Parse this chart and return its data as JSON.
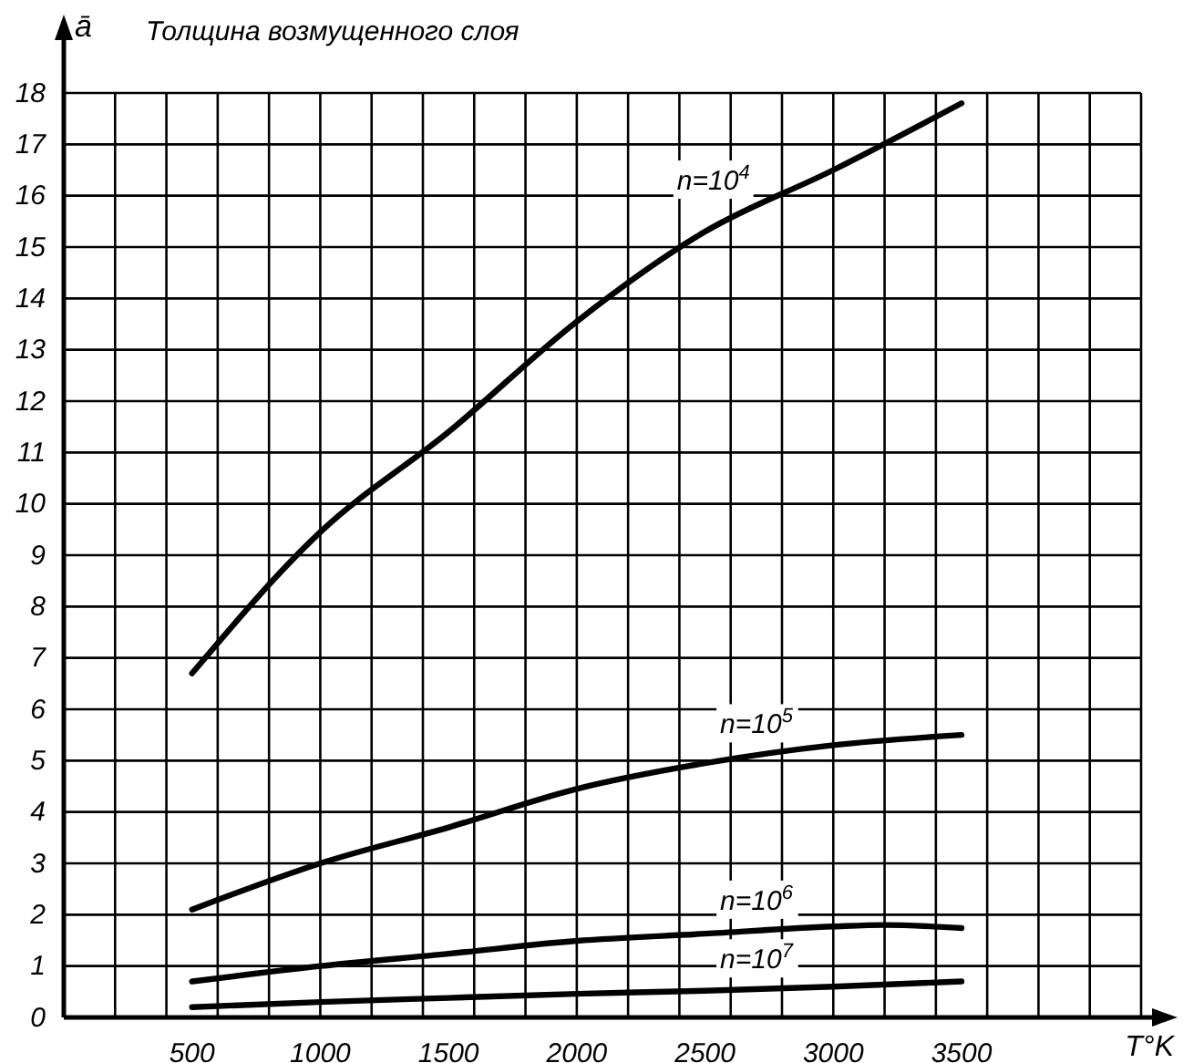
{
  "chart_data": {
    "type": "line",
    "title": "Толщина возмущенного слоя",
    "xlabel": "T°K",
    "ylabel": "ā",
    "xlim": [
      0,
      4200
    ],
    "ylim": [
      0,
      18
    ],
    "xticks": [
      {
        "value": 0,
        "label": null
      },
      {
        "value": 200,
        "label": null
      },
      {
        "value": 400,
        "label": null
      },
      500,
      {
        "value": 600,
        "label": null
      },
      {
        "value": 800,
        "label": null
      },
      1000,
      {
        "value": 1200,
        "label": null
      },
      {
        "value": 1400,
        "label": null
      },
      1500,
      {
        "value": 1600,
        "label": null
      },
      {
        "value": 1800,
        "label": null
      },
      2000,
      {
        "value": 2200,
        "label": null
      },
      {
        "value": 2400,
        "label": null
      },
      2500,
      {
        "value": 2600,
        "label": null
      },
      {
        "value": 2800,
        "label": null
      },
      3000,
      {
        "value": 3200,
        "label": null
      },
      {
        "value": 3400,
        "label": null
      },
      3500,
      {
        "value": 3600,
        "label": null
      },
      {
        "value": 3800,
        "label": null
      },
      {
        "value": 4000,
        "label": null
      },
      {
        "value": 4200,
        "label": null
      }
    ],
    "yticks": [
      0,
      1,
      2,
      3,
      4,
      5,
      6,
      7,
      8,
      9,
      10,
      11,
      12,
      13,
      14,
      15,
      16,
      17,
      18
    ],
    "grid": true,
    "marker": "none",
    "line_style": "solid",
    "series": [
      {
        "name": "n=10$^{4}$",
        "color": "#000000",
        "x": [
          500,
          1000,
          1500,
          2000,
          2500,
          3000,
          3500
        ],
        "values": [
          6.7,
          9.45,
          11.4,
          13.55,
          15.3,
          16.5,
          17.8
        ]
      },
      {
        "name": "n=10$^{5}$",
        "color": "#000000",
        "x": [
          500,
          1000,
          1500,
          2000,
          2500,
          3000,
          3500
        ],
        "values": [
          2.1,
          3,
          3.7,
          4.45,
          4.95,
          5.3,
          5.5
        ]
      },
      {
        "name": "n=10$^{6}$",
        "color": "#000000",
        "x": [
          500,
          1000,
          1500,
          2000,
          2500,
          3000,
          3200,
          3500
        ],
        "values": [
          0.7,
          1,
          1.24,
          1.49,
          1.63,
          1.77,
          1.8,
          1.74
        ]
      },
      {
        "name": "n=10$^{7}$",
        "color": "#000000",
        "x": [
          500,
          1000,
          1500,
          2000,
          2500,
          3000,
          3500
        ],
        "values": [
          0.2,
          0.3,
          0.38,
          0.46,
          0.52,
          0.6,
          0.7
        ]
      }
    ]
  }
}
